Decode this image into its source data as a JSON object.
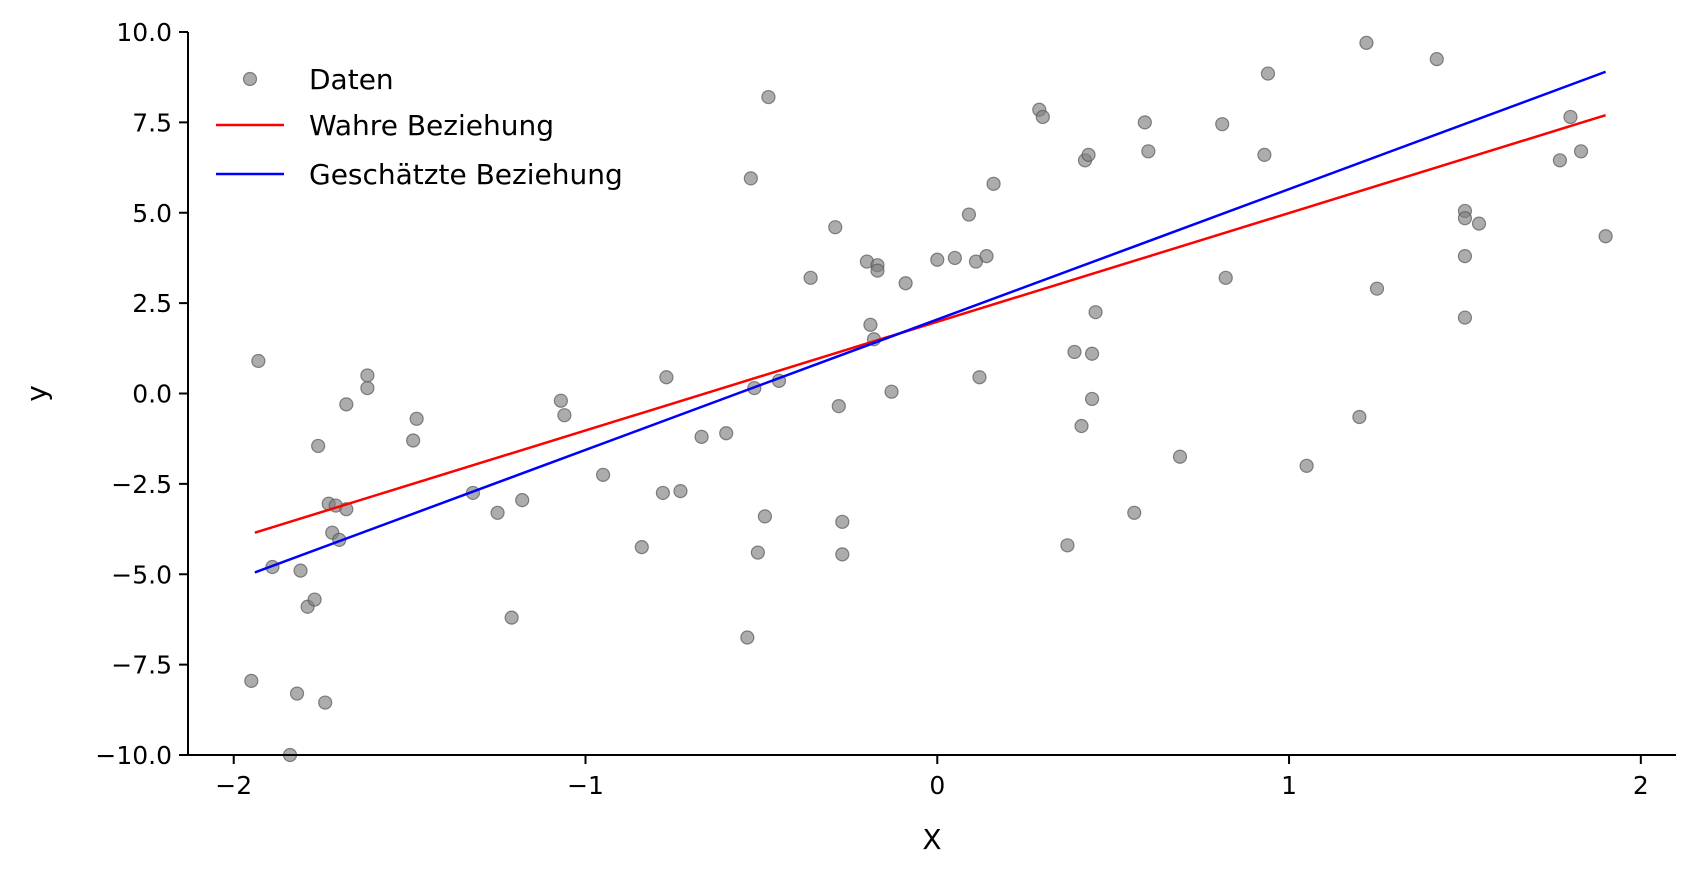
{
  "chart_data": {
    "type": "scatter",
    "xlabel": "X",
    "ylabel": "y",
    "xlim": [
      -2.13,
      2.1
    ],
    "ylim": [
      -10.0,
      10.0
    ],
    "xticks": [
      -2,
      -1,
      0,
      1,
      2
    ],
    "xtick_labels": [
      "−2",
      "−1",
      "0",
      "1",
      "2"
    ],
    "yticks": [
      -10,
      -7.5,
      -5,
      -2.5,
      0,
      2.5,
      5,
      7.5,
      10
    ],
    "ytick_labels": [
      "−10.0",
      "−7.5",
      "−5.0",
      "−2.5",
      "0.0",
      "2.5",
      "5.0",
      "7.5",
      "10.0"
    ],
    "grid": false,
    "legend_position": "top-left",
    "colors": {
      "data": "#808080",
      "true_line": "#ff0000",
      "fit_line": "#0000ff"
    },
    "series": [
      {
        "name": "Daten",
        "type": "scatter",
        "points": [
          [
            -1.95,
            -7.95
          ],
          [
            -1.93,
            0.9
          ],
          [
            -1.89,
            -4.8
          ],
          [
            -1.84,
            -10.0
          ],
          [
            -1.82,
            -8.3
          ],
          [
            -1.81,
            -4.9
          ],
          [
            -1.79,
            -5.9
          ],
          [
            -1.77,
            -5.7
          ],
          [
            -1.76,
            -1.45
          ],
          [
            -1.74,
            -8.55
          ],
          [
            -1.73,
            -3.05
          ],
          [
            -1.72,
            -3.85
          ],
          [
            -1.71,
            -3.1
          ],
          [
            -1.7,
            -4.05
          ],
          [
            -1.68,
            -3.2
          ],
          [
            -1.68,
            -0.3
          ],
          [
            -1.62,
            0.15
          ],
          [
            -1.62,
            0.5
          ],
          [
            -1.49,
            -1.3
          ],
          [
            -1.48,
            -0.7
          ],
          [
            -1.32,
            -2.75
          ],
          [
            -1.25,
            -3.3
          ],
          [
            -1.21,
            -6.2
          ],
          [
            -1.18,
            -2.95
          ],
          [
            -1.07,
            -0.2
          ],
          [
            -1.06,
            -0.6
          ],
          [
            -0.95,
            -2.25
          ],
          [
            -0.84,
            -4.25
          ],
          [
            -0.78,
            -2.75
          ],
          [
            -0.77,
            0.45
          ],
          [
            -0.73,
            -2.7
          ],
          [
            -0.67,
            -1.2
          ],
          [
            -0.6,
            -1.1
          ],
          [
            -0.54,
            -6.75
          ],
          [
            -0.53,
            5.95
          ],
          [
            -0.52,
            0.15
          ],
          [
            -0.51,
            -4.4
          ],
          [
            -0.49,
            -3.4
          ],
          [
            -0.48,
            8.2
          ],
          [
            -0.45,
            0.35
          ],
          [
            -0.36,
            3.2
          ],
          [
            -0.29,
            4.6
          ],
          [
            -0.28,
            -0.35
          ],
          [
            -0.27,
            -3.55
          ],
          [
            -0.27,
            -4.45
          ],
          [
            -0.2,
            3.65
          ],
          [
            -0.19,
            1.9
          ],
          [
            -0.18,
            1.5
          ],
          [
            -0.17,
            3.55
          ],
          [
            -0.17,
            3.4
          ],
          [
            -0.13,
            0.05
          ],
          [
            -0.09,
            3.05
          ],
          [
            0.0,
            3.7
          ],
          [
            0.05,
            3.75
          ],
          [
            0.09,
            4.95
          ],
          [
            0.11,
            3.65
          ],
          [
            0.12,
            0.45
          ],
          [
            0.14,
            3.8
          ],
          [
            0.16,
            5.8
          ],
          [
            0.29,
            7.85
          ],
          [
            0.3,
            7.65
          ],
          [
            0.37,
            -4.2
          ],
          [
            0.39,
            1.15
          ],
          [
            0.41,
            -0.9
          ],
          [
            0.42,
            6.45
          ],
          [
            0.43,
            6.6
          ],
          [
            0.44,
            -0.15
          ],
          [
            0.44,
            1.1
          ],
          [
            0.45,
            2.25
          ],
          [
            0.56,
            -3.3
          ],
          [
            0.59,
            7.5
          ],
          [
            0.6,
            6.7
          ],
          [
            0.69,
            -1.75
          ],
          [
            0.81,
            7.45
          ],
          [
            0.82,
            3.2
          ],
          [
            0.93,
            6.6
          ],
          [
            0.94,
            8.85
          ],
          [
            1.05,
            -2.0
          ],
          [
            1.2,
            -0.65
          ],
          [
            1.22,
            9.7
          ],
          [
            1.25,
            2.9
          ],
          [
            1.42,
            9.25
          ],
          [
            1.5,
            5.05
          ],
          [
            1.5,
            4.85
          ],
          [
            1.5,
            3.8
          ],
          [
            1.5,
            2.1
          ],
          [
            1.54,
            4.7
          ],
          [
            1.77,
            6.45
          ],
          [
            1.8,
            7.65
          ],
          [
            1.83,
            6.7
          ],
          [
            1.9,
            4.35
          ]
        ]
      },
      {
        "name": "Wahre Beziehung",
        "type": "line",
        "x": [
          -1.94,
          1.9
        ],
        "y": [
          -3.85,
          7.7
        ]
      },
      {
        "name": "Geschätzte Beziehung",
        "type": "line",
        "x": [
          -1.94,
          1.9
        ],
        "y": [
          -4.95,
          8.9
        ]
      }
    ]
  }
}
